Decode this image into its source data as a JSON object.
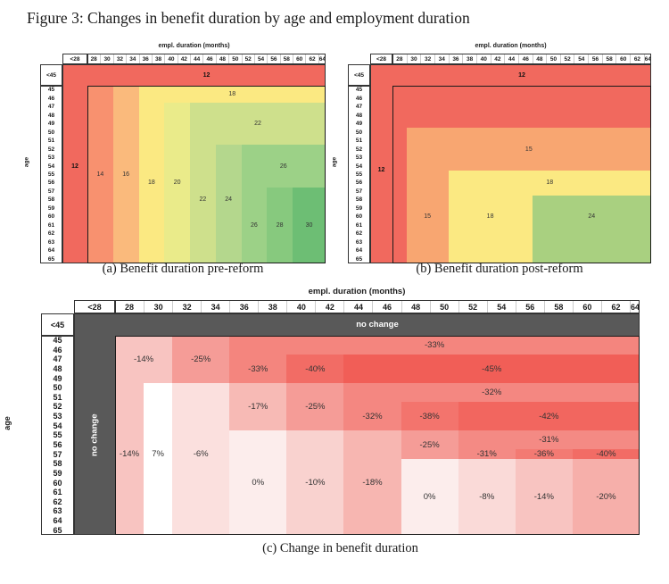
{
  "figure_title": "Figure 3: Changes in benefit duration by age and employment duration",
  "chart_data": {
    "type": "heatmap",
    "x_axis_title": "empl. duration (months)",
    "y_axis_title": "age",
    "col_headers": [
      "<28",
      "28",
      "30",
      "32",
      "34",
      "36",
      "38",
      "40",
      "42",
      "44",
      "46",
      "48",
      "50",
      "52",
      "54",
      "56",
      "58",
      "60",
      "62",
      "64"
    ],
    "row_headers": [
      "<45",
      "45",
      "46",
      "47",
      "48",
      "49",
      "50",
      "51",
      "52",
      "53",
      "54",
      "55",
      "56",
      "57",
      "58",
      "59",
      "60",
      "61",
      "62",
      "63",
      "64",
      "65"
    ],
    "panels": [
      {
        "id": "a",
        "caption": "(a) Benefit duration pre-reform",
        "unit": "months of benefits",
        "base_value": 12,
        "base_color": "#F1695E",
        "zones": [
          {
            "c0": 1,
            "c1": 2,
            "r0": 1,
            "r1": 21,
            "v": 14,
            "color": "#F8916F"
          },
          {
            "c0": 3,
            "c1": 4,
            "r0": 1,
            "r1": 21,
            "v": 16,
            "color": "#FABA7C"
          },
          {
            "c0": 5,
            "c1": 19,
            "r0": 1,
            "r1": 21,
            "v": 18,
            "color": "#FBE982"
          },
          {
            "c0": 7,
            "c1": 19,
            "r0": 3,
            "r1": 21,
            "v": 20,
            "color": "#EAEB8A"
          },
          {
            "c0": 9,
            "c1": 19,
            "r0": 3,
            "r1": 21,
            "v": 22,
            "color": "#CEE08C"
          },
          {
            "c0": 11,
            "c1": 19,
            "r0": 8,
            "r1": 21,
            "v": 24,
            "color": "#B4D78D"
          },
          {
            "c0": 13,
            "c1": 19,
            "r0": 8,
            "r1": 21,
            "v": 26,
            "color": "#9CD187"
          },
          {
            "c0": 15,
            "c1": 19,
            "r0": 13,
            "r1": 21,
            "v": 28,
            "color": "#87C97E"
          },
          {
            "c0": 17,
            "c1": 19,
            "r0": 13,
            "r1": 21,
            "v": 30,
            "color": "#6DBE74"
          }
        ],
        "labels": [
          {
            "t": "12",
            "c0": 1,
            "c1": 19,
            "r0": 0,
            "r1": 0,
            "bold": true
          },
          {
            "t": "12",
            "c0": 0,
            "c1": 0,
            "r0": 8,
            "r1": 12,
            "bold": true
          },
          {
            "t": "18",
            "c0": 5,
            "c1": 19,
            "r0": 1,
            "r1": 2
          },
          {
            "t": "22",
            "c0": 9,
            "c1": 19,
            "r0": 3,
            "r1": 7
          },
          {
            "t": "26",
            "c0": 13,
            "c1": 19,
            "r0": 8,
            "r1": 12
          },
          {
            "t": "14",
            "c0": 1,
            "c1": 2,
            "r0": 10,
            "r1": 12
          },
          {
            "t": "16",
            "c0": 3,
            "c1": 4,
            "r0": 10,
            "r1": 12
          },
          {
            "t": "18",
            "c0": 5,
            "c1": 6,
            "r0": 11,
            "r1": 13
          },
          {
            "t": "20",
            "c0": 7,
            "c1": 8,
            "r0": 11,
            "r1": 13
          },
          {
            "t": "22",
            "c0": 9,
            "c1": 10,
            "r0": 13,
            "r1": 15
          },
          {
            "t": "24",
            "c0": 11,
            "c1": 12,
            "r0": 13,
            "r1": 15
          },
          {
            "t": "26",
            "c0": 13,
            "c1": 14,
            "r0": 16,
            "r1": 18
          },
          {
            "t": "28",
            "c0": 15,
            "c1": 16,
            "r0": 16,
            "r1": 18
          },
          {
            "t": "30",
            "c0": 17,
            "c1": 19,
            "r0": 16,
            "r1": 18
          }
        ]
      },
      {
        "id": "b",
        "caption": "(b) Benefit duration post-reform",
        "unit": "months of benefits",
        "base_value": 12,
        "base_color": "#F1695E",
        "zones": [
          {
            "c0": 2,
            "c1": 19,
            "r0": 6,
            "r1": 21,
            "v": 15,
            "color": "#F8A671"
          },
          {
            "c0": 5,
            "c1": 19,
            "r0": 11,
            "r1": 21,
            "v": 18,
            "color": "#FBE982"
          },
          {
            "c0": 11,
            "c1": 19,
            "r0": 14,
            "r1": 21,
            "v": 24,
            "color": "#A9D080"
          }
        ],
        "labels": [
          {
            "t": "12",
            "c0": 1,
            "c1": 19,
            "r0": 0,
            "r1": 0,
            "bold": true
          },
          {
            "t": "12",
            "c0": 0,
            "c1": 0,
            "r0": 9,
            "r1": 12,
            "bold": true
          },
          {
            "t": "15",
            "c0": 2,
            "c1": 19,
            "r0": 6,
            "r1": 10
          },
          {
            "t": "15",
            "c0": 2,
            "c1": 4,
            "r0": 14,
            "r1": 18
          },
          {
            "t": "18",
            "c0": 5,
            "c1": 19,
            "r0": 11,
            "r1": 13
          },
          {
            "t": "18",
            "c0": 5,
            "c1": 10,
            "r0": 14,
            "r1": 18
          },
          {
            "t": "24",
            "c0": 11,
            "c1": 19,
            "r0": 14,
            "r1": 18
          }
        ]
      },
      {
        "id": "c",
        "caption": "(c) Change in benefit duration",
        "unit": "percent change",
        "base_color": "#FFFFFF",
        "no_change_color": "#595959",
        "no_change_label": "no change",
        "zones": [
          {
            "c0": 1,
            "c1": 2,
            "r0": 1,
            "r1": 21,
            "v": "-14%",
            "color": "#F8C4C1"
          },
          {
            "c0": 3,
            "c1": 4,
            "r0": 1,
            "r1": 5,
            "v": "-25%",
            "color": "#F59C97"
          },
          {
            "c0": 5,
            "c1": 19,
            "r0": 1,
            "r1": 2,
            "v": "-33%",
            "color": "#F4857E"
          },
          {
            "c0": 5,
            "c1": 6,
            "r0": 3,
            "r1": 5,
            "v": "-33%",
            "color": "#F4857E"
          },
          {
            "c0": 7,
            "c1": 8,
            "r0": 3,
            "r1": 5,
            "v": "-40%",
            "color": "#F26C65"
          },
          {
            "c0": 9,
            "c1": 19,
            "r0": 3,
            "r1": 5,
            "v": "-45%",
            "color": "#F15E57"
          },
          {
            "c0": 2,
            "c1": 2,
            "r0": 6,
            "r1": 21,
            "v": "7%",
            "color": "#FFFFFF"
          },
          {
            "c0": 3,
            "c1": 4,
            "r0": 6,
            "r1": 21,
            "v": "-6%",
            "color": "#FBE0DE"
          },
          {
            "c0": 5,
            "c1": 6,
            "r0": 6,
            "r1": 10,
            "v": "-17%",
            "color": "#F7BAB5"
          },
          {
            "c0": 7,
            "c1": 8,
            "r0": 6,
            "r1": 10,
            "v": "-25%",
            "color": "#F59C97"
          },
          {
            "c0": 9,
            "c1": 19,
            "r0": 6,
            "r1": 7,
            "v": "-32%",
            "color": "#F48781"
          },
          {
            "c0": 9,
            "c1": 10,
            "r0": 8,
            "r1": 10,
            "v": "-32%",
            "color": "#F48781"
          },
          {
            "c0": 11,
            "c1": 12,
            "r0": 8,
            "r1": 10,
            "v": "-38%",
            "color": "#F3746D"
          },
          {
            "c0": 13,
            "c1": 19,
            "r0": 8,
            "r1": 10,
            "v": "-42%",
            "color": "#F2665F"
          },
          {
            "c0": 5,
            "c1": 6,
            "r0": 11,
            "r1": 21,
            "v": "0%",
            "color": "#FCEDEC"
          },
          {
            "c0": 7,
            "c1": 8,
            "r0": 11,
            "r1": 21,
            "v": "-10%",
            "color": "#F9D2CF"
          },
          {
            "c0": 9,
            "c1": 10,
            "r0": 11,
            "r1": 21,
            "v": "-18%",
            "color": "#F7B6B1"
          },
          {
            "c0": 11,
            "c1": 12,
            "r0": 11,
            "r1": 13,
            "v": "-25%",
            "color": "#F59C97"
          },
          {
            "c0": 13,
            "c1": 19,
            "r0": 11,
            "r1": 12,
            "v": "-31%",
            "color": "#F48A84"
          },
          {
            "c0": 13,
            "c1": 14,
            "r0": 13,
            "r1": 13,
            "v": "-31%",
            "color": "#F48A84"
          },
          {
            "c0": 15,
            "c1": 16,
            "r0": 13,
            "r1": 13,
            "v": "-36%",
            "color": "#F37A73"
          },
          {
            "c0": 17,
            "c1": 19,
            "r0": 13,
            "r1": 13,
            "v": "-40%",
            "color": "#F26C65"
          },
          {
            "c0": 11,
            "c1": 12,
            "r0": 14,
            "r1": 21,
            "v": "0%",
            "color": "#FCEDEC"
          },
          {
            "c0": 13,
            "c1": 14,
            "r0": 14,
            "r1": 21,
            "v": "-8%",
            "color": "#FADAD8"
          },
          {
            "c0": 15,
            "c1": 16,
            "r0": 14,
            "r1": 21,
            "v": "-14%",
            "color": "#F8C4C1"
          },
          {
            "c0": 17,
            "c1": 19,
            "r0": 14,
            "r1": 21,
            "v": "-20%",
            "color": "#F6AFAA"
          },
          {
            "c0": 0,
            "c1": 0,
            "r0": 0,
            "r1": 21,
            "v": "no change",
            "color": "#595959"
          },
          {
            "c0": 1,
            "c1": 19,
            "r0": 0,
            "r1": 0,
            "v": "no change",
            "color": "#595959"
          }
        ],
        "labels": [
          {
            "t": "no change",
            "c0": 1,
            "c1": 19,
            "r0": 0,
            "r1": 0,
            "white": true
          },
          {
            "t": "no change",
            "c0": 0,
            "c1": 0,
            "r0": 1,
            "r1": 21,
            "white": true,
            "vertical": true
          },
          {
            "t": "-14%",
            "c0": 1,
            "c1": 2,
            "r0": 1,
            "r1": 5
          },
          {
            "t": "-25%",
            "c0": 3,
            "c1": 4,
            "r0": 1,
            "r1": 5
          },
          {
            "t": "-33%",
            "c0": 5,
            "c1": 19,
            "r0": 1,
            "r1": 2
          },
          {
            "t": "-33%",
            "c0": 5,
            "c1": 6,
            "r0": 3,
            "r1": 5
          },
          {
            "t": "-40%",
            "c0": 7,
            "c1": 8,
            "r0": 3,
            "r1": 5
          },
          {
            "t": "-45%",
            "c0": 9,
            "c1": 19,
            "r0": 3,
            "r1": 5
          },
          {
            "t": "-32%",
            "c0": 9,
            "c1": 19,
            "r0": 6,
            "r1": 7
          },
          {
            "t": "-17%",
            "c0": 5,
            "c1": 6,
            "r0": 6,
            "r1": 10
          },
          {
            "t": "-25%",
            "c0": 7,
            "c1": 8,
            "r0": 6,
            "r1": 10
          },
          {
            "t": "-32%",
            "c0": 9,
            "c1": 10,
            "r0": 8,
            "r1": 10
          },
          {
            "t": "-38%",
            "c0": 11,
            "c1": 12,
            "r0": 8,
            "r1": 10
          },
          {
            "t": "-42%",
            "c0": 13,
            "c1": 19,
            "r0": 8,
            "r1": 10
          },
          {
            "t": "-25%",
            "c0": 11,
            "c1": 12,
            "r0": 11,
            "r1": 13
          },
          {
            "t": "-31%",
            "c0": 13,
            "c1": 19,
            "r0": 11,
            "r1": 12
          },
          {
            "t": "-31%",
            "c0": 13,
            "c1": 14,
            "r0": 13,
            "r1": 13
          },
          {
            "t": "-36%",
            "c0": 15,
            "c1": 16,
            "r0": 13,
            "r1": 13
          },
          {
            "t": "-40%",
            "c0": 17,
            "c1": 19,
            "r0": 13,
            "r1": 13
          },
          {
            "t": "-14%",
            "c0": 1,
            "c1": 1,
            "r0": 13,
            "r1": 13
          },
          {
            "t": "7%",
            "c0": 2,
            "c1": 2,
            "r0": 13,
            "r1": 13
          },
          {
            "t": "-6%",
            "c0": 3,
            "c1": 4,
            "r0": 13,
            "r1": 13
          },
          {
            "t": "0%",
            "c0": 5,
            "c1": 6,
            "r0": 11,
            "r1": 21
          },
          {
            "t": "-10%",
            "c0": 7,
            "c1": 8,
            "r0": 11,
            "r1": 21
          },
          {
            "t": "-18%",
            "c0": 9,
            "c1": 10,
            "r0": 11,
            "r1": 21
          },
          {
            "t": "0%",
            "c0": 11,
            "c1": 12,
            "r0": 14,
            "r1": 21
          },
          {
            "t": "-8%",
            "c0": 13,
            "c1": 14,
            "r0": 14,
            "r1": 21
          },
          {
            "t": "-14%",
            "c0": 15,
            "c1": 16,
            "r0": 14,
            "r1": 21
          },
          {
            "t": "-20%",
            "c0": 17,
            "c1": 19,
            "r0": 14,
            "r1": 21
          }
        ]
      }
    ]
  }
}
